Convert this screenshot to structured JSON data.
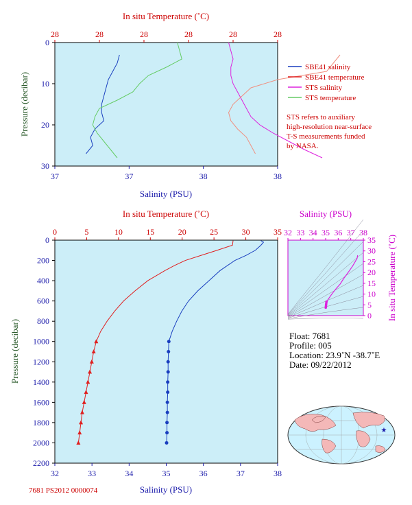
{
  "colors": {
    "panel_bg": "#cceef8",
    "sbe_salinity": "#1a3fbf",
    "sbe_temperature": "#e02020",
    "sts_salinity": "#dd22dd",
    "sts_temperature": "#66cc66",
    "sts_temperature_light": "#f09080",
    "axis_red": "#cc0000",
    "axis_blue": "#1a1aaa",
    "axis_magenta": "#cc00cc",
    "axis_green": "#2a5a2a"
  },
  "top_chart": {
    "top_axis_title": "In situ Temperature (˚C)",
    "top_ticks": [
      "28",
      "28",
      "28",
      "28",
      "28",
      "28"
    ],
    "bottom_axis_title": "Salinity (PSU)",
    "bottom_ticks": [
      "37",
      "37",
      "38",
      "38"
    ],
    "left_axis_title": "Pressure (decibar)",
    "left_ticks": [
      "0",
      "10",
      "20",
      "30"
    ],
    "legend": [
      {
        "label": "SBE41 salinity",
        "color": "#1a3fbf"
      },
      {
        "label": "SBE41 temperature",
        "color": "#e02020"
      },
      {
        "label": "STS salinity",
        "color": "#dd22dd"
      },
      {
        "label": "STS temperature",
        "color": "#66cc66"
      }
    ],
    "note_lines": [
      "STS refers to auxiliary",
      "high-resolution near-surface",
      "T-S measurements funded",
      "by NASA."
    ]
  },
  "main_chart": {
    "top_axis_title": "In situ Temperature (˚C)",
    "top_ticks": [
      "0",
      "5",
      "10",
      "15",
      "20",
      "25",
      "30",
      "35"
    ],
    "bottom_axis_title": "Salinity (PSU)",
    "bottom_ticks": [
      "32",
      "33",
      "34",
      "35",
      "36",
      "37",
      "38"
    ],
    "left_axis_title": "Pressure (decibar)",
    "left_ticks": [
      "0",
      "200",
      "400",
      "600",
      "800",
      "1000",
      "1200",
      "1400",
      "1600",
      "1800",
      "2000",
      "2200"
    ]
  },
  "ts_diagram": {
    "top_axis_title": "Salinity (PSU)",
    "top_ticks": [
      "32",
      "33",
      "34",
      "35",
      "36",
      "37",
      "38"
    ],
    "right_axis_title": "In situ Temperature (˚C)",
    "right_ticks": [
      "0",
      "5",
      "10",
      "15",
      "20",
      "25",
      "30",
      "35"
    ]
  },
  "float_info": {
    "float_line": "Float:  7681",
    "profile_line": "Profile:  005",
    "location_line": "Location:  23.9˚N  -38.7˚E",
    "date_line": "Date:  09/22/2012"
  },
  "footnote": "7681 PS2012 0000074",
  "chart_data": [
    {
      "type": "line",
      "title": "",
      "ylabel": "Pressure (decibar)",
      "xlabel": "Salinity (PSU)",
      "x2label": "In situ Temperature (˚C)",
      "ylim": [
        30,
        0
      ],
      "xlim_salinity": [
        37.0,
        38.0
      ],
      "series": [
        {
          "name": "SBE41 salinity",
          "pressure": [
            3,
            5,
            7,
            9,
            11,
            13,
            15,
            17,
            19,
            21,
            23,
            25,
            27
          ],
          "salinity": [
            37.29,
            37.28,
            37.26,
            37.24,
            37.23,
            37.22,
            37.21,
            37.21,
            37.22,
            37.18,
            37.16,
            37.17,
            37.14
          ]
        },
        {
          "name": "STS salinity",
          "pressure": [
            0,
            2,
            4,
            6,
            8,
            10,
            12,
            14,
            16,
            18,
            20,
            22,
            24,
            26,
            28
          ],
          "salinity": [
            37.78,
            37.79,
            37.8,
            37.79,
            37.79,
            37.8,
            37.82,
            37.84,
            37.86,
            37.88,
            37.92,
            37.98,
            38.05,
            38.12,
            38.2
          ]
        },
        {
          "name": "STS temperature",
          "pressure": [
            0,
            2,
            4,
            6,
            8,
            10,
            12,
            14,
            16,
            18,
            20,
            22,
            24,
            26,
            28
          ],
          "salinity_axis_pos": [
            37.55,
            37.56,
            37.57,
            37.5,
            37.42,
            37.38,
            37.35,
            37.28,
            37.2,
            37.18,
            37.17,
            37.19,
            37.22,
            37.25,
            37.28
          ]
        },
        {
          "name": "SBE41 temperature",
          "pressure": [
            3,
            5,
            7,
            9,
            11,
            13,
            15,
            17,
            19,
            21,
            23,
            25,
            27
          ],
          "salinity_axis_pos": [
            38.28,
            38.25,
            38.22,
            38.0,
            37.88,
            37.84,
            37.8,
            37.78,
            37.79,
            37.82,
            37.86,
            37.88,
            37.9
          ]
        }
      ]
    },
    {
      "type": "line",
      "title": "",
      "ylabel": "Pressure (decibar)",
      "xlabel": "Salinity (PSU)",
      "x2label": "In situ Temperature (˚C)",
      "ylim": [
        2200,
        0
      ],
      "xlim_salinity": [
        32,
        38
      ],
      "xlim_temperature": [
        0,
        35
      ],
      "series": [
        {
          "name": "temperature",
          "pressure": [
            5,
            50,
            100,
            150,
            200,
            250,
            300,
            400,
            500,
            600,
            700,
            800,
            900,
            1000,
            1100,
            1200,
            1300,
            1400,
            1500,
            1600,
            1700,
            1800,
            1900,
            2000
          ],
          "values": [
            28.0,
            27.9,
            25.5,
            23.0,
            20.5,
            18.8,
            17.3,
            14.6,
            12.6,
            10.8,
            9.4,
            8.2,
            7.2,
            6.5,
            6.1,
            5.8,
            5.5,
            5.2,
            4.9,
            4.6,
            4.3,
            4.1,
            3.9,
            3.7
          ]
        },
        {
          "name": "salinity",
          "pressure": [
            5,
            20,
            50,
            100,
            150,
            200,
            300,
            400,
            500,
            600,
            700,
            800,
            900,
            1000,
            1100,
            1200,
            1300,
            1400,
            1500,
            1600,
            1700,
            1800,
            1900,
            2000
          ],
          "values": [
            37.55,
            37.62,
            37.55,
            37.4,
            37.15,
            36.85,
            36.45,
            36.15,
            35.85,
            35.6,
            35.42,
            35.28,
            35.16,
            35.07,
            35.06,
            35.05,
            35.05,
            35.04,
            35.04,
            35.03,
            35.03,
            35.02,
            35.02,
            35.01
          ]
        }
      ]
    },
    {
      "type": "scatter",
      "title": "",
      "xlabel": "Salinity (PSU)",
      "ylabel": "In situ Temperature (˚C)",
      "xlim": [
        32,
        38
      ],
      "ylim": [
        0,
        35
      ],
      "series": [
        {
          "name": "T-S",
          "x": [
            37.55,
            37.5,
            37.4,
            37.15,
            36.85,
            36.45,
            36.15,
            35.85,
            35.6,
            35.42,
            35.28,
            35.16,
            35.07,
            35.05,
            35.04,
            35.03,
            35.02,
            35.01
          ],
          "y": [
            28.0,
            26.5,
            25.5,
            23.0,
            20.5,
            17.3,
            14.6,
            12.6,
            10.8,
            9.4,
            8.2,
            7.2,
            6.5,
            5.8,
            5.2,
            4.6,
            4.1,
            3.7
          ]
        }
      ]
    }
  ]
}
